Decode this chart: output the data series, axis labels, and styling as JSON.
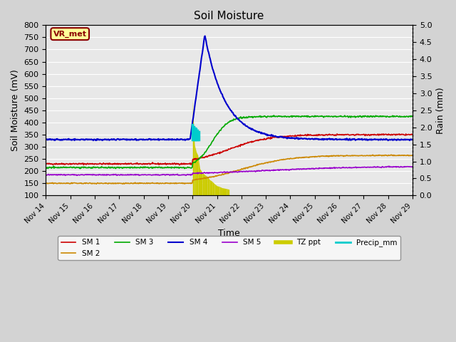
{
  "title": "Soil Moisture",
  "xlabel": "Time",
  "ylabel_left": "Soil Moisture (mV)",
  "ylabel_right": "Rain (mm)",
  "ylim_left": [
    100,
    800
  ],
  "ylim_right": [
    0.0,
    5.0
  ],
  "yticks_left": [
    100,
    150,
    200,
    250,
    300,
    350,
    400,
    450,
    500,
    550,
    600,
    650,
    700,
    750,
    800
  ],
  "yticks_right": [
    0.0,
    0.5,
    1.0,
    1.5,
    2.0,
    2.5,
    3.0,
    3.5,
    4.0,
    4.5,
    5.0
  ],
  "bg_color": "#d3d3d3",
  "plot_bg_color": "#e8e8e8",
  "label_box": "VR_met",
  "label_box_bg": "#ffff99",
  "label_box_border": "#8b0000",
  "series": {
    "SM1": {
      "color": "#cc0000",
      "label": "SM 1"
    },
    "SM2": {
      "color": "#cc8800",
      "label": "SM 2"
    },
    "SM3": {
      "color": "#00aa00",
      "label": "SM 3"
    },
    "SM4": {
      "color": "#0000cc",
      "label": "SM 4"
    },
    "SM5": {
      "color": "#9900cc",
      "label": "SM 5"
    },
    "Precip_mm": {
      "color": "#00cccc",
      "label": "Precip_mm"
    },
    "TZ_ppt": {
      "color": "#cccc00",
      "label": "TZ ppt"
    }
  },
  "xticklabels": [
    "Nov 14",
    "Nov 15",
    "Nov 16",
    "Nov 17",
    "Nov 18",
    "Nov 19",
    "Nov 20",
    "Nov 21",
    "Nov 22",
    "Nov 23",
    "Nov 24",
    "Nov 25",
    "Nov 26",
    "Nov 27",
    "Nov 28",
    "Nov 29"
  ],
  "n_days": 15
}
